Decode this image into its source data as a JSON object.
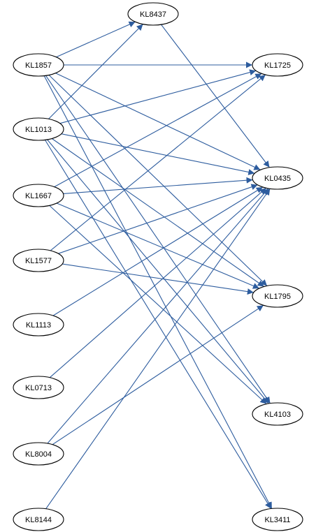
{
  "diagram": {
    "edge_color": "#2d5c9e",
    "nodes": [
      {
        "id": "KL8437",
        "label": "KL8437"
      },
      {
        "id": "KL1857",
        "label": "KL1857"
      },
      {
        "id": "KL1725",
        "label": "KL1725"
      },
      {
        "id": "KL1013",
        "label": "KL1013"
      },
      {
        "id": "KL1667",
        "label": "KL1667"
      },
      {
        "id": "KL0435",
        "label": "KL0435"
      },
      {
        "id": "KL1577",
        "label": "KL1577"
      },
      {
        "id": "KL1795",
        "label": "KL1795"
      },
      {
        "id": "KL1113",
        "label": "KL1113"
      },
      {
        "id": "KL0713",
        "label": "KL0713"
      },
      {
        "id": "KL8004",
        "label": "KL8004"
      },
      {
        "id": "KL4103",
        "label": "KL4103"
      },
      {
        "id": "KL8144",
        "label": "KL8144"
      },
      {
        "id": "KL3411",
        "label": "KL3411"
      }
    ],
    "edges": [
      {
        "from": "KL1857",
        "to": "KL8437"
      },
      {
        "from": "KL1857",
        "to": "KL1725"
      },
      {
        "from": "KL1857",
        "to": "KL0435"
      },
      {
        "from": "KL1857",
        "to": "KL1795"
      },
      {
        "from": "KL1857",
        "to": "KL4103"
      },
      {
        "from": "KL1857",
        "to": "KL3411"
      },
      {
        "from": "KL1013",
        "to": "KL8437"
      },
      {
        "from": "KL1013",
        "to": "KL1725"
      },
      {
        "from": "KL1013",
        "to": "KL0435"
      },
      {
        "from": "KL1013",
        "to": "KL1795"
      },
      {
        "from": "KL1013",
        "to": "KL4103"
      },
      {
        "from": "KL1013",
        "to": "KL3411"
      },
      {
        "from": "KL1667",
        "to": "KL1725"
      },
      {
        "from": "KL1667",
        "to": "KL0435"
      },
      {
        "from": "KL1667",
        "to": "KL1795"
      },
      {
        "from": "KL1667",
        "to": "KL4103"
      },
      {
        "from": "KL1577",
        "to": "KL1725"
      },
      {
        "from": "KL1577",
        "to": "KL0435"
      },
      {
        "from": "KL1577",
        "to": "KL1795"
      },
      {
        "from": "KL1113",
        "to": "KL0435"
      },
      {
        "from": "KL0713",
        "to": "KL0435"
      },
      {
        "from": "KL8004",
        "to": "KL0435"
      },
      {
        "from": "KL8004",
        "to": "KL1795"
      },
      {
        "from": "KL8144",
        "to": "KL0435"
      },
      {
        "from": "KL8437",
        "to": "KL0435"
      }
    ]
  }
}
